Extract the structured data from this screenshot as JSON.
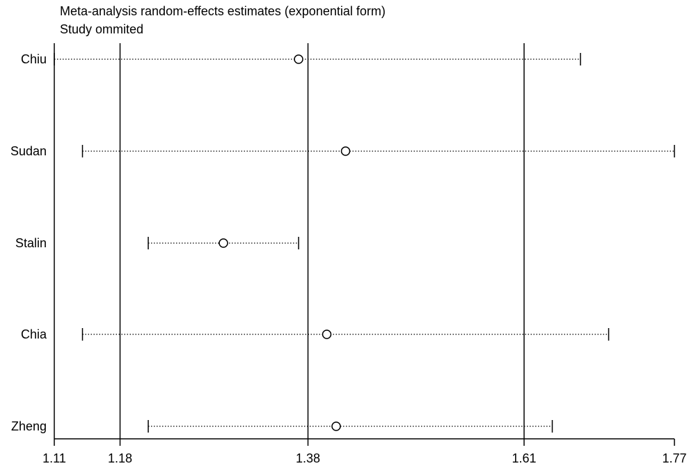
{
  "chart_data": {
    "type": "scatter",
    "title": "Meta-analysis random-effects estimates (exponential form)",
    "subtitle": "Study ommited",
    "xlim": [
      1.11,
      1.77
    ],
    "x_ticks": [
      "1.11",
      "1.18",
      "1.38",
      "1.61",
      "1.77"
    ],
    "reference_lines": [
      1.18,
      1.38,
      1.61
    ],
    "studies": [
      {
        "label": "Chiu",
        "estimate": 1.37,
        "lower": 1.11,
        "upper": 1.67
      },
      {
        "label": "Sudan",
        "estimate": 1.42,
        "lower": 1.14,
        "upper": 1.77
      },
      {
        "label": "Stalin",
        "estimate": 1.29,
        "lower": 1.21,
        "upper": 1.37
      },
      {
        "label": "Chia",
        "estimate": 1.4,
        "lower": 1.14,
        "upper": 1.7
      },
      {
        "label": "Zheng",
        "estimate": 1.41,
        "lower": 1.21,
        "upper": 1.64
      }
    ],
    "grid": false,
    "legend": "none",
    "colors": {
      "lines": "#000000",
      "marker_fill": "#ffffff"
    }
  }
}
